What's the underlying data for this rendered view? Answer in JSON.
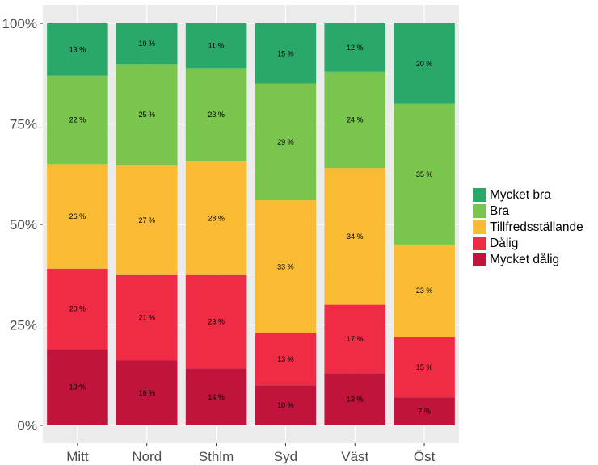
{
  "chart_data": {
    "type": "bar",
    "stacked": true,
    "categories": [
      "Mitt",
      "Nord",
      "Sthlm",
      "Syd",
      "Väst",
      "Öst"
    ],
    "series": [
      {
        "name": "Mycket dålig",
        "color": "#c0143c",
        "values": [
          19,
          16,
          14,
          10,
          13,
          7
        ]
      },
      {
        "name": "Dålig",
        "color": "#ef2b45",
        "values": [
          20,
          21,
          23,
          13,
          17,
          15
        ]
      },
      {
        "name": "Tillfredsställande",
        "color": "#f8bb33",
        "values": [
          26,
          27,
          28,
          33,
          34,
          23
        ]
      },
      {
        "name": "Bra",
        "color": "#79c54e",
        "values": [
          22,
          25,
          23,
          29,
          24,
          35
        ]
      },
      {
        "name": "Mycket bra",
        "color": "#2aa86a",
        "values": [
          13,
          10,
          11,
          15,
          12,
          20
        ]
      }
    ],
    "value_suffix": " %",
    "y_ticks": [
      "0%",
      "25%",
      "50%",
      "75%",
      "100%"
    ],
    "ylim": [
      0,
      100
    ],
    "grid": true,
    "legend_position": "right",
    "legend_order": [
      "Mycket bra",
      "Bra",
      "Tillfredsställande",
      "Dålig",
      "Mycket dålig"
    ],
    "title": "",
    "xlabel": "",
    "ylabel": ""
  },
  "colors": {
    "panel_background": "#ebebeb",
    "grid_major": "#ffffff",
    "grid_minor": "#f3f3f3",
    "tick_text": "#4d4d4d"
  }
}
